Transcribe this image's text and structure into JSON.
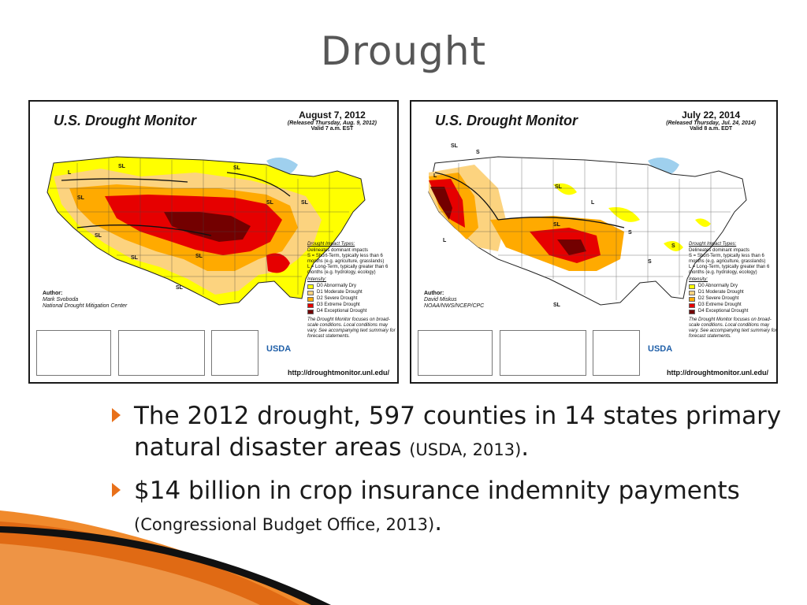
{
  "slide": {
    "title": "Drought",
    "bullets": [
      {
        "text": "The 2012 drought, 597 counties in 14 states primary natural disaster areas ",
        "cite": "(USDA, 2013)",
        "end": "."
      },
      {
        "text": "$14 billion in crop insurance indemnity payments ",
        "cite": "(Congressional Budget Office, 2013)",
        "end": "."
      }
    ]
  },
  "maps": [
    {
      "title": "U.S. Drought Monitor",
      "date": "August 7, 2012",
      "released": "(Released Thursday, Aug. 9, 2012)",
      "valid": "Valid 7 a.m. EST",
      "author_label": "Author:",
      "author_name": "Mark Svoboda",
      "author_org": "National Drought Mitigation Center",
      "url": "http://droughtmonitor.unl.edu/"
    },
    {
      "title": "U.S. Drought Monitor",
      "date": "July 22, 2014",
      "released": "(Released Thursday, Jul. 24, 2014)",
      "valid": "Valid 8 a.m. EDT",
      "author_label": "Author:",
      "author_name": "David Miskus",
      "author_org": "NOAA/NWS/NCEP/CPC",
      "url": "http://droughtmonitor.unl.edu/"
    }
  ],
  "legend": {
    "impact_heading": "Drought Impact Types:",
    "impact_line": "Delineates dominant impacts",
    "short_term": "S = Short-Term, typically less than 6 months (e.g. agriculture, grasslands)",
    "long_term": "L = Long-Term, typically greater than 6 months (e.g. hydrology, ecology)",
    "intensity_heading": "Intensity:",
    "levels": [
      {
        "label": "D0 Abnormally Dry",
        "color": "#ffff00"
      },
      {
        "label": "D1 Moderate Drought",
        "color": "#fcd37f"
      },
      {
        "label": "D2 Severe Drought",
        "color": "#ffaa00"
      },
      {
        "label": "D3 Extreme Drought",
        "color": "#e60000"
      },
      {
        "label": "D4 Exceptional Drought",
        "color": "#730000"
      }
    ],
    "note": "The Drought Monitor focuses on broad-scale conditions. Local conditions may vary. See accompanying text summary for forecast statements."
  },
  "logo": {
    "usda": "USDA"
  },
  "colors": {
    "accent": "#e8701a",
    "title": "#575757"
  }
}
